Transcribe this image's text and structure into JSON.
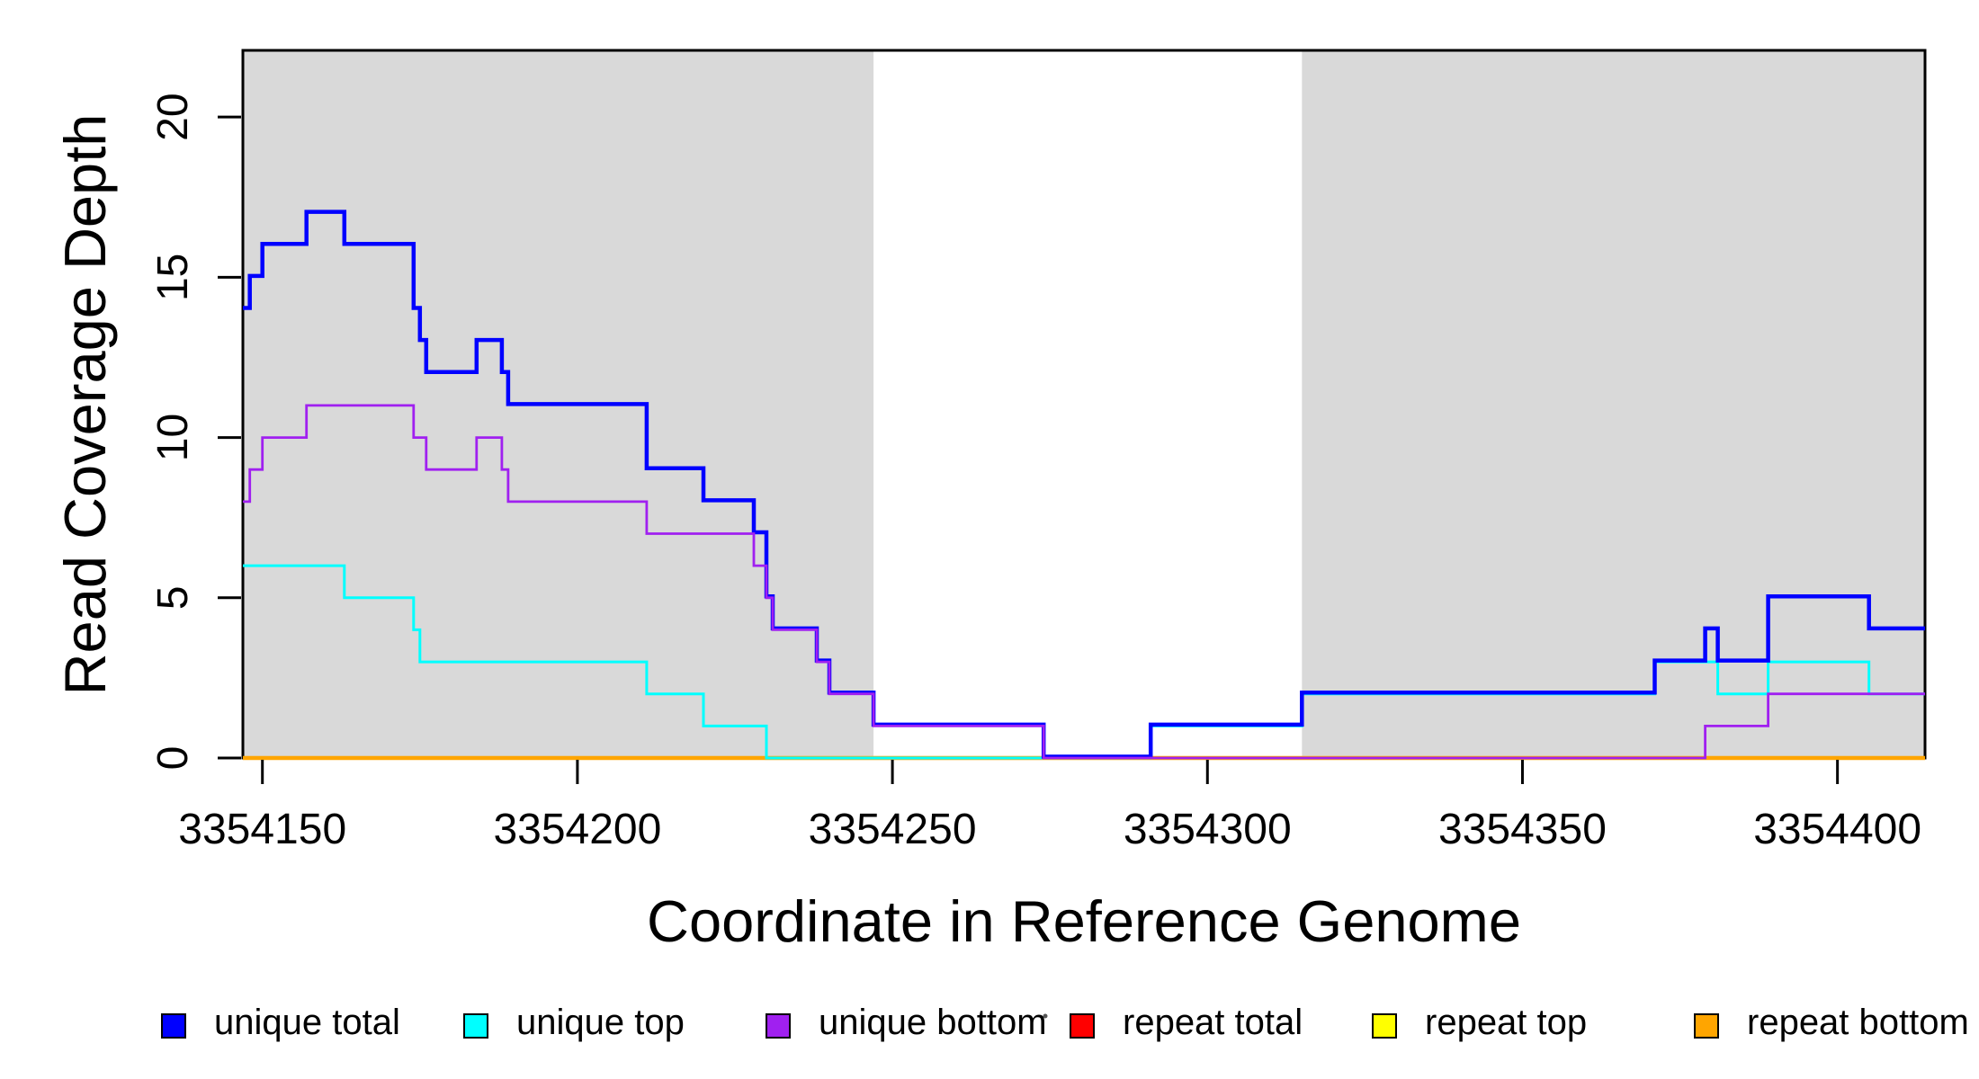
{
  "chart_data": {
    "type": "line",
    "subtype": "step",
    "title": "",
    "xlabel": "Coordinate in Reference Genome",
    "ylabel": "Read Coverage Depth",
    "xlim": [
      3354146.9,
      3354413.9
    ],
    "ylim": [
      0,
      22.08
    ],
    "grid": false,
    "x_ticks": [
      3354150,
      3354200,
      3354250,
      3354300,
      3354350,
      3354400
    ],
    "x_tick_labels": [
      "3354150",
      "3354200",
      "3354250",
      "3354300",
      "3354350",
      "3354400"
    ],
    "y_ticks": [
      0,
      5,
      10,
      15,
      20
    ],
    "y_tick_labels": [
      "0",
      "5",
      "10",
      "15",
      "20"
    ],
    "shaded_regions": [
      {
        "name": "left-gray-block",
        "x0": 3354146.9,
        "x1": 3354247,
        "color": "#D9D9D9"
      },
      {
        "name": "right-gray-block",
        "x0": 3354315,
        "x1": 3354413.9,
        "color": "#D9D9D9"
      }
    ],
    "series": [
      {
        "name": "repeat total",
        "color": "#FF0000",
        "width": 3.5,
        "steps": [
          [
            3354146.9,
            0
          ]
        ]
      },
      {
        "name": "repeat top",
        "color": "#FFFF00",
        "width": 3.5,
        "steps": [
          [
            3354146.9,
            0
          ]
        ]
      },
      {
        "name": "repeat bottom",
        "color": "#FFA500",
        "width": 4.5,
        "steps": [
          [
            3354146.9,
            0
          ]
        ]
      },
      {
        "name": "unique top",
        "color": "#00FFFF",
        "width": 3,
        "steps": [
          [
            3354146.9,
            6
          ],
          [
            3354163,
            5
          ],
          [
            3354174,
            4
          ],
          [
            3354175,
            3
          ],
          [
            3354211,
            2
          ],
          [
            3354220,
            1
          ],
          [
            3354230,
            0
          ],
          [
            3354291,
            1
          ],
          [
            3354315,
            2
          ],
          [
            3354371,
            3
          ],
          [
            3354381,
            2
          ],
          [
            3354389,
            3
          ],
          [
            3354405,
            2
          ]
        ]
      },
      {
        "name": "unique total",
        "color": "#0000FF",
        "width": 4.5,
        "dy": -1.5,
        "steps": [
          [
            3354146.9,
            14
          ],
          [
            3354148,
            15
          ],
          [
            3354150,
            16
          ],
          [
            3354157,
            17
          ],
          [
            3354163,
            16
          ],
          [
            3354174,
            14
          ],
          [
            3354175,
            13
          ],
          [
            3354176,
            12
          ],
          [
            3354184,
            13
          ],
          [
            3354188,
            12
          ],
          [
            3354189,
            11
          ],
          [
            3354211,
            9
          ],
          [
            3354220,
            8
          ],
          [
            3354228,
            7
          ],
          [
            3354230,
            5
          ],
          [
            3354231,
            4
          ],
          [
            3354238,
            3
          ],
          [
            3354240,
            2
          ],
          [
            3354247,
            1
          ],
          [
            3354274,
            0
          ],
          [
            3354291,
            1
          ],
          [
            3354315,
            2
          ],
          [
            3354371,
            3
          ],
          [
            3354379,
            4
          ],
          [
            3354381,
            3
          ],
          [
            3354389,
            5
          ],
          [
            3354405,
            4
          ]
        ]
      },
      {
        "name": "unique bottom",
        "color": "#A020F0",
        "width": 2.8,
        "steps": [
          [
            3354146.9,
            8
          ],
          [
            3354148,
            9
          ],
          [
            3354150,
            10
          ],
          [
            3354157,
            11
          ],
          [
            3354174,
            10
          ],
          [
            3354176,
            9
          ],
          [
            3354184,
            10
          ],
          [
            3354188,
            9
          ],
          [
            3354189,
            8
          ],
          [
            3354211,
            7
          ],
          [
            3354228,
            6
          ],
          [
            3354230,
            5
          ],
          [
            3354231,
            4
          ],
          [
            3354238,
            3
          ],
          [
            3354240,
            2
          ],
          [
            3354247,
            1
          ],
          [
            3354274,
            0
          ],
          [
            3354379,
            1
          ],
          [
            3354389,
            2
          ]
        ]
      }
    ],
    "legend": {
      "position": "bottom-horizontal",
      "items": [
        {
          "label": "unique total",
          "color": "#0000FF"
        },
        {
          "label": "unique top",
          "color": "#00FFFF"
        },
        {
          "label": "unique bottom",
          "color": "#A020F0"
        },
        {
          "label": "repeat total",
          "color": "#FF0000"
        },
        {
          "label": "repeat top",
          "color": "#FFFF00"
        },
        {
          "label": "repeat bottom",
          "color": "#FFA500"
        }
      ]
    }
  }
}
